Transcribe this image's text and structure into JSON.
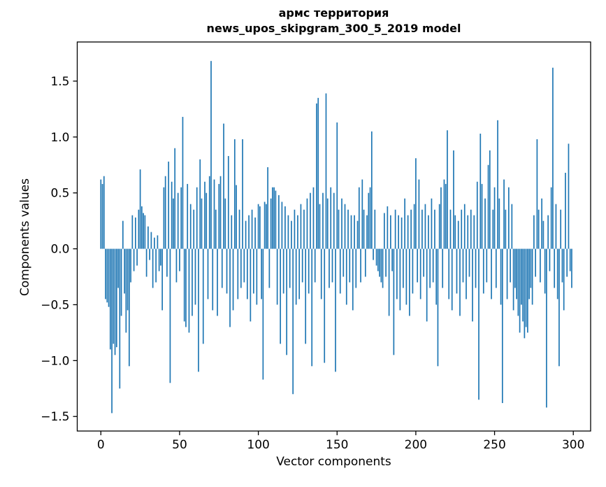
{
  "chart_data": {
    "type": "bar",
    "title": "армс территория",
    "subtitle": "news_upos_skipgram_300_5_2019 model",
    "xlabel": "Vector components",
    "ylabel": "Components values",
    "xlim": [
      -15,
      311
    ],
    "ylim": [
      -1.63,
      1.85
    ],
    "xticks": [
      0,
      50,
      100,
      150,
      200,
      250,
      300
    ],
    "yticks": [
      -1.5,
      -1.0,
      -0.5,
      0.0,
      0.5,
      1.0,
      1.5
    ],
    "bar_color": "#1f77b4",
    "grid": false,
    "legend": "none",
    "values": [
      0.62,
      0.58,
      0.65,
      -0.45,
      -0.48,
      -0.52,
      -0.9,
      -1.47,
      -0.85,
      -0.95,
      -0.88,
      -0.35,
      -1.25,
      -0.6,
      0.25,
      -0.4,
      -0.75,
      -0.55,
      -1.05,
      -0.3,
      0.3,
      -0.2,
      0.28,
      -0.15,
      0.35,
      0.71,
      0.38,
      0.32,
      0.3,
      -0.25,
      0.2,
      -0.1,
      0.15,
      -0.35,
      0.1,
      -0.3,
      0.12,
      -0.2,
      -0.15,
      -0.55,
      0.55,
      0.65,
      -0.25,
      0.78,
      -1.2,
      0.6,
      0.45,
      0.9,
      -0.3,
      0.5,
      -0.2,
      0.55,
      1.18,
      -0.65,
      -0.7,
      0.58,
      -0.75,
      0.4,
      -0.6,
      0.35,
      -0.5,
      0.55,
      -1.1,
      0.8,
      0.45,
      -0.85,
      0.6,
      0.5,
      -0.45,
      0.65,
      1.68,
      -0.55,
      0.62,
      0.35,
      -0.6,
      0.58,
      0.65,
      -0.35,
      1.12,
      0.45,
      -0.4,
      0.83,
      -0.7,
      0.3,
      -0.55,
      0.98,
      0.57,
      -0.45,
      0.35,
      -0.35,
      0.98,
      -0.3,
      0.25,
      -0.45,
      0.3,
      -0.65,
      0.35,
      -0.4,
      0.28,
      -0.5,
      0.4,
      0.38,
      -0.45,
      -1.17,
      0.42,
      0.4,
      0.73,
      -0.35,
      0.45,
      0.55,
      0.55,
      0.52,
      -0.5,
      0.48,
      -0.85,
      0.42,
      -0.4,
      0.38,
      -0.95,
      0.3,
      -0.35,
      0.25,
      -1.3,
      0.35,
      -0.5,
      0.3,
      -0.45,
      0.4,
      -0.3,
      0.35,
      -0.85,
      0.45,
      -0.4,
      0.5,
      -1.05,
      0.55,
      -0.3,
      1.3,
      1.35,
      0.4,
      -0.45,
      0.5,
      -1.02,
      1.39,
      0.45,
      -0.35,
      0.55,
      -0.3,
      0.5,
      -1.1,
      1.13,
      0.35,
      -0.4,
      0.45,
      -0.25,
      0.4,
      -0.5,
      0.35,
      -0.3,
      0.3,
      -0.55,
      0.3,
      -0.35,
      0.25,
      0.55,
      -0.3,
      0.62,
      0.35,
      -0.25,
      0.3,
      0.5,
      0.55,
      1.05,
      -0.1,
      0.35,
      -0.15,
      -0.2,
      -0.25,
      -0.3,
      -0.35,
      0.32,
      -0.25,
      0.38,
      -0.6,
      0.3,
      -0.2,
      -0.95,
      0.35,
      -0.45,
      0.3,
      -0.55,
      0.28,
      -0.35,
      0.45,
      -0.5,
      0.3,
      -0.6,
      0.35,
      -0.4,
      0.4,
      0.81,
      -0.3,
      0.62,
      -0.45,
      0.35,
      -0.25,
      0.4,
      -0.65,
      0.3,
      -0.35,
      0.45,
      -0.3,
      0.35,
      -0.5,
      -1.05,
      0.4,
      0.55,
      -0.35,
      0.62,
      0.58,
      1.06,
      -0.45,
      0.35,
      -0.55,
      0.88,
      0.3,
      -0.4,
      0.25,
      -0.6,
      0.35,
      -0.3,
      0.4,
      -0.45,
      0.3,
      -0.25,
      0.35,
      -0.65,
      0.3,
      -0.35,
      0.6,
      -1.35,
      1.03,
      0.58,
      -0.4,
      0.45,
      -0.3,
      0.75,
      0.88,
      -0.45,
      0.35,
      0.55,
      -0.35,
      1.15,
      0.45,
      -0.5,
      -1.38,
      0.62,
      0.35,
      -0.45,
      0.55,
      -0.3,
      0.4,
      -0.55,
      -0.35,
      -0.45,
      -0.6,
      -0.75,
      -0.5,
      -0.65,
      -0.8,
      -0.7,
      -0.75,
      -0.45,
      -0.35,
      -0.5,
      0.3,
      -0.25,
      0.98,
      0.35,
      -0.3,
      0.45,
      0.25,
      -0.4,
      -1.42,
      0.3,
      -0.2,
      0.55,
      1.62,
      -0.35,
      0.4,
      -0.45,
      -1.05,
      0.35,
      -0.3,
      -0.55,
      0.68,
      -0.25,
      0.94,
      -0.2,
      -0.35
    ]
  }
}
